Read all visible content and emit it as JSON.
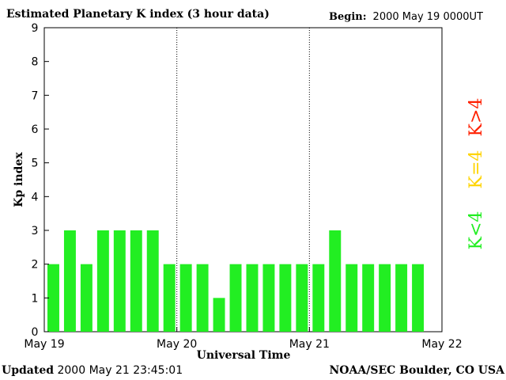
{
  "header": {
    "title": "Estimated Planetary K index (3 hour data)",
    "begin_label": "Begin:",
    "begin_value": "2000 May 19 0000UT"
  },
  "footer": {
    "updated_label": "Updated",
    "updated_value": "2000 May 21 23:45:01",
    "credit": "NOAA/SEC Boulder, CO USA"
  },
  "legend": [
    {
      "label": "K>4",
      "color": "#ff2000"
    },
    {
      "label": "K=4",
      "color": "#ffd400"
    },
    {
      "label": "K<4",
      "color": "#22ee22"
    }
  ],
  "chart_data": {
    "type": "bar",
    "title": "Estimated Planetary K index (3 hour data)",
    "xlabel": "Universal Time",
    "ylabel": "Kp index",
    "ylim": [
      0,
      9
    ],
    "yticks": [
      0,
      1,
      2,
      3,
      4,
      5,
      6,
      7,
      8,
      9
    ],
    "xticks": [
      "May 19",
      "May 20",
      "May 21",
      "May 22"
    ],
    "day_separators": [
      "May 20",
      "May 21"
    ],
    "bars_per_day": 8,
    "values": [
      2,
      3,
      2,
      3,
      3,
      3,
      3,
      2,
      2,
      2,
      1,
      2,
      2,
      2,
      2,
      2,
      2,
      3,
      2,
      2,
      2,
      2,
      2
    ],
    "bar_color": "#22ee22",
    "grid": false
  }
}
